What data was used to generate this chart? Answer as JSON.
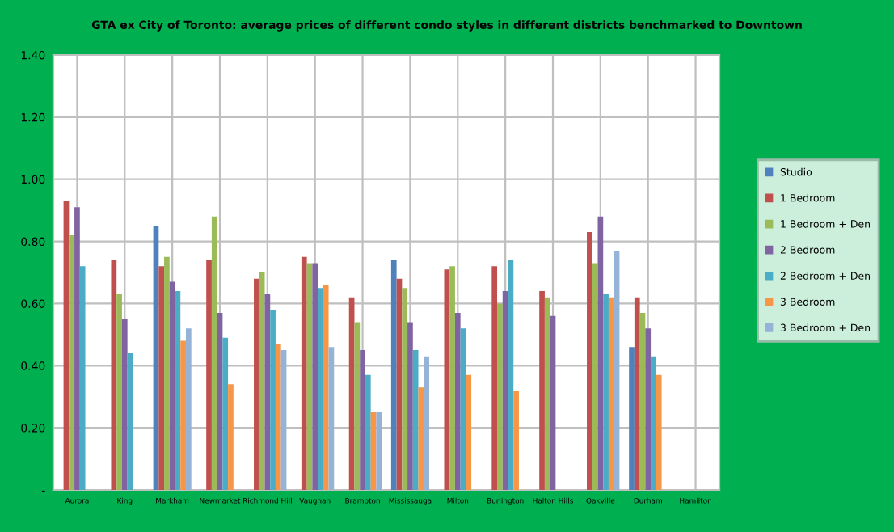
{
  "chart_data": {
    "type": "bar",
    "title": "GTA ex City of Toronto: average prices of different condo styles in different districts benchmarked to Downtown",
    "categories": [
      "Aurora",
      "King",
      "Markham",
      "Newmarket",
      "Richmond Hill",
      "Vaughan",
      "Brampton",
      "Mississauga",
      "Milton",
      "Burlington",
      "Halton Hills",
      "Oakville",
      "Durham",
      "Hamilton"
    ],
    "series": [
      {
        "name": "Studio",
        "color": "#4f81bd",
        "values": [
          null,
          null,
          0.85,
          null,
          null,
          null,
          null,
          0.74,
          null,
          null,
          null,
          null,
          0.46,
          null
        ]
      },
      {
        "name": "1 Bedroom",
        "color": "#c0504d",
        "values": [
          0.93,
          0.74,
          0.72,
          0.74,
          0.68,
          0.75,
          0.62,
          0.68,
          0.71,
          0.72,
          0.64,
          0.83,
          0.62,
          null
        ]
      },
      {
        "name": "1 Bedroom + Den",
        "color": "#9bbb59",
        "values": [
          0.82,
          0.63,
          0.75,
          0.88,
          0.7,
          0.73,
          0.54,
          0.65,
          0.72,
          0.6,
          0.62,
          0.73,
          0.57,
          null
        ]
      },
      {
        "name": "2 Bedroom",
        "color": "#8064a2",
        "values": [
          0.91,
          0.55,
          0.67,
          0.57,
          0.63,
          0.73,
          0.45,
          0.54,
          0.57,
          0.64,
          0.56,
          0.88,
          0.52,
          null
        ]
      },
      {
        "name": "2 Bedroom + Den",
        "color": "#4bacc6",
        "values": [
          0.72,
          0.44,
          0.64,
          0.49,
          0.58,
          0.65,
          0.37,
          0.45,
          0.52,
          0.74,
          null,
          0.63,
          0.43,
          null
        ]
      },
      {
        "name": "3 Bedroom",
        "color": "#f79646",
        "values": [
          null,
          null,
          0.48,
          0.34,
          0.47,
          0.66,
          0.25,
          0.33,
          0.37,
          0.32,
          null,
          0.62,
          0.37,
          null
        ]
      },
      {
        "name": "3 Bedroom + Den",
        "color": "#95b3d7",
        "values": [
          null,
          null,
          0.52,
          null,
          0.45,
          0.46,
          0.25,
          0.43,
          null,
          null,
          null,
          0.77,
          null,
          null
        ]
      }
    ],
    "ylim": [
      0,
      1.4
    ],
    "yticks": [
      {
        "value": 0,
        "label": "-"
      },
      {
        "value": 0.2,
        "label": "0.20"
      },
      {
        "value": 0.4,
        "label": "0.40"
      },
      {
        "value": 0.6,
        "label": "0.60"
      },
      {
        "value": 0.8,
        "label": "0.80"
      },
      {
        "value": 1.0,
        "label": "1.00"
      },
      {
        "value": 1.2,
        "label": "1.20"
      },
      {
        "value": 1.4,
        "label": "1.40"
      }
    ],
    "grid": true,
    "legend": "right"
  }
}
